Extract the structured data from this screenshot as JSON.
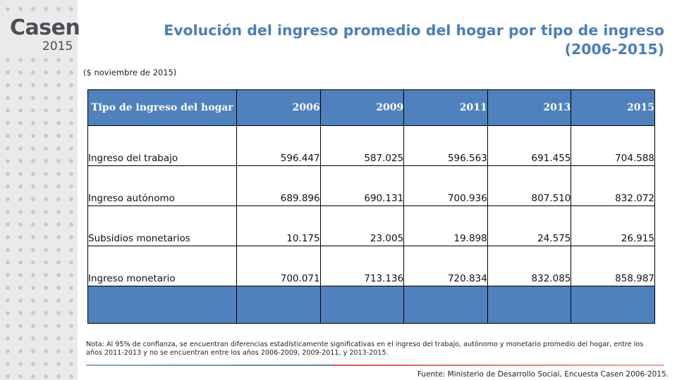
{
  "logo": {
    "word": "Casen",
    "year": "2015"
  },
  "title": "Evolución del ingreso promedio del hogar por tipo de ingreso (2006-2015)",
  "subtitle": "($ noviembre de 2015)",
  "table": {
    "headers": [
      "Tipo de ingreso del hogar",
      "2006",
      "2009",
      "2011",
      "2013",
      "2015"
    ],
    "rows": [
      {
        "label": "Ingreso del trabajo",
        "values": [
          "596.447",
          "587.025",
          "596.563",
          "691.455",
          "704.588"
        ]
      },
      {
        "label": "Ingreso autónomo",
        "values": [
          "689.896",
          "690.131",
          "700.936",
          "807.510",
          "832.072"
        ]
      },
      {
        "label": "Subsidios monetarios",
        "values": [
          "10.175",
          "23.005",
          "19.898",
          "24.575",
          "26.915"
        ]
      },
      {
        "label": "Ingreso monetario",
        "values": [
          "700.071",
          "713.136",
          "720.834",
          "832.085",
          "858.987"
        ]
      }
    ]
  },
  "note": "Nota: Al 95% de confianza, se encuentran diferencias estadísticamente significativas en el ingreso del trabajo, autónomo y monetario promedio del hogar, entre los años 2011-2013 y no se encuentran entre los años 2006-2009, 2009-2011, y 2013-2015.",
  "source": "Fuente: Ministerio de Desarrollo Social, Encuesta Casen 2006-2015.",
  "colors": {
    "accent": "#4f81bd",
    "title": "#4a7ebb",
    "divider_red": "#d9534f"
  }
}
